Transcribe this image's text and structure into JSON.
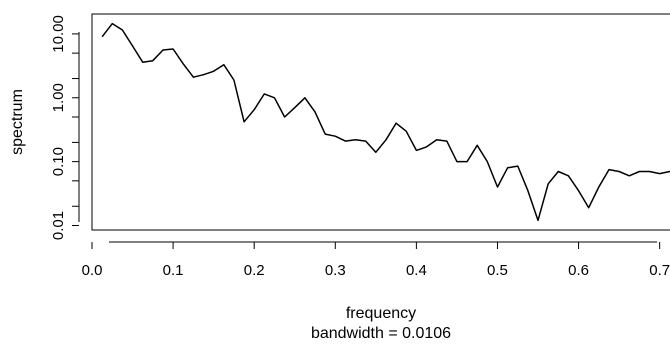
{
  "chart_data": {
    "type": "line",
    "xlabel": "frequency",
    "ylabel": "spectrum",
    "subtitle": "bandwidth = 0.0106",
    "y_log_scale": true,
    "grid": false,
    "xlim": [
      0.0,
      0.73
    ],
    "ylim": [
      0.0085,
      20.5
    ],
    "x_ticks": [
      0.0,
      0.1,
      0.2,
      0.3,
      0.4,
      0.5,
      0.6,
      0.7
    ],
    "x_tick_labels": [
      "0.0",
      "0.1",
      "0.2",
      "0.3",
      "0.4",
      "0.5",
      "0.6",
      "0.7"
    ],
    "y_ticks": [
      0.01,
      0.02,
      0.05,
      0.1,
      0.2,
      0.5,
      1,
      2,
      5,
      10
    ],
    "y_tick_labels": [
      "0.01",
      "",
      "",
      "0.10",
      "",
      "",
      "1.00",
      "",
      "",
      "10.00"
    ],
    "series": [
      {
        "x": [
          0.0125,
          0.025,
          0.0375,
          0.05,
          0.0625,
          0.075,
          0.0875,
          0.1,
          0.1125,
          0.125,
          0.1375,
          0.15,
          0.1625,
          0.175,
          0.1875,
          0.2,
          0.2125,
          0.225,
          0.2375,
          0.25,
          0.2625,
          0.275,
          0.2875,
          0.3,
          0.3125,
          0.325,
          0.3375,
          0.35,
          0.3625,
          0.375,
          0.3875,
          0.4,
          0.4125,
          0.425,
          0.4375,
          0.45,
          0.4625,
          0.475,
          0.4875,
          0.5,
          0.5125,
          0.525,
          0.5375,
          0.55,
          0.5625,
          0.575,
          0.5875,
          0.6,
          0.6125,
          0.625,
          0.6375,
          0.65,
          0.6625,
          0.675,
          0.6875,
          0.7,
          0.7125,
          0.725
        ],
        "values": [
          9.0,
          14.5,
          11.5,
          6.5,
          3.6,
          3.8,
          5.6,
          5.8,
          3.4,
          2.1,
          2.3,
          2.6,
          3.3,
          1.9,
          0.42,
          0.65,
          1.15,
          1.0,
          0.5,
          0.7,
          1.0,
          0.6,
          0.27,
          0.25,
          0.21,
          0.22,
          0.21,
          0.14,
          0.22,
          0.4,
          0.3,
          0.15,
          0.17,
          0.22,
          0.21,
          0.1,
          0.1,
          0.18,
          0.1,
          0.04,
          0.08,
          0.085,
          0.035,
          0.012,
          0.045,
          0.07,
          0.06,
          0.035,
          0.019,
          0.04,
          0.075,
          0.07,
          0.06,
          0.07,
          0.07,
          0.065,
          0.07,
          0.065
        ]
      }
    ]
  }
}
